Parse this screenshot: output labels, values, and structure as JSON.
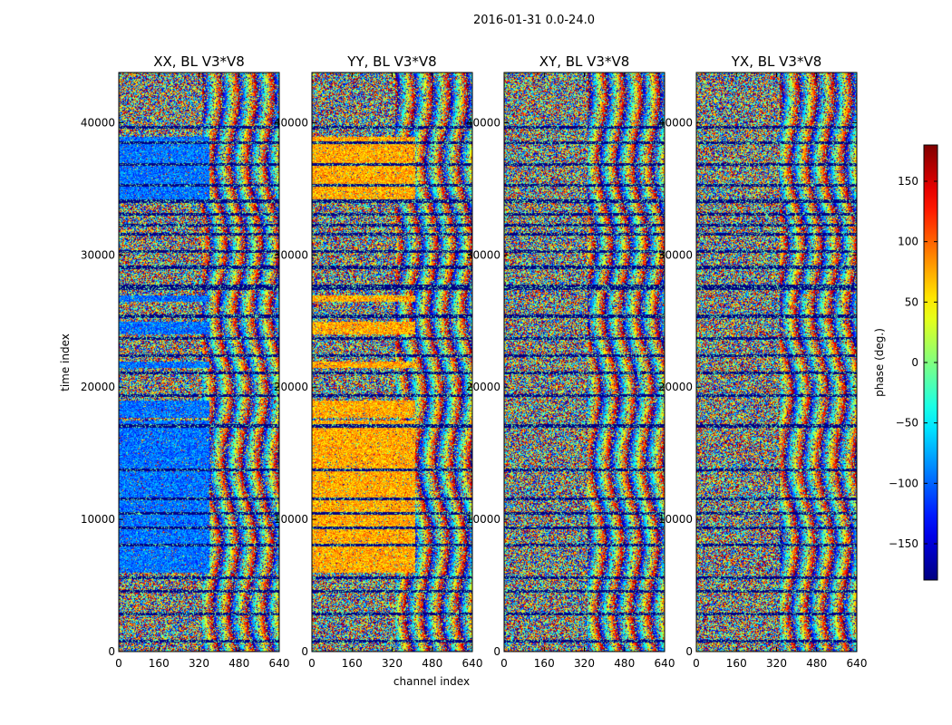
{
  "figure_title": "2016-01-31 0.0-24.0",
  "chart_data": {
    "type": "heatmap",
    "title": "2016-01-31 0.0-24.0",
    "xlabel": "channel index",
    "ylabel": "time index",
    "colorbar_label": "phase (deg.)",
    "colormap": "jet",
    "color_range": [
      -180,
      180
    ],
    "colorbar_ticks": [
      -150,
      -100,
      -50,
      0,
      50,
      100,
      150
    ],
    "colorbar_tick_labels": [
      "−150",
      "−100",
      "−50",
      "0",
      "50",
      "100",
      "150"
    ],
    "x_range": [
      0,
      640
    ],
    "y_range": [
      0,
      43800
    ],
    "x_ticks": [
      0,
      160,
      320,
      480,
      640
    ],
    "y_ticks": [
      0,
      10000,
      20000,
      30000,
      40000
    ],
    "panels": [
      {
        "title": "XX, BL V3*V8",
        "dominant_phase": -95,
        "bias_bands": [
          [
            6000,
            17500
          ],
          [
            17700,
            19000
          ],
          [
            21500,
            22000
          ],
          [
            24000,
            25000
          ],
          [
            26500,
            27000
          ],
          [
            34000,
            39000
          ]
        ],
        "bias_channel_limit": 360
      },
      {
        "title": "YY, BL V3*V8",
        "dominant_phase": 75,
        "bias_bands": [
          [
            6000,
            17500
          ],
          [
            17700,
            19000
          ],
          [
            21500,
            22000
          ],
          [
            24000,
            25000
          ],
          [
            26500,
            27000
          ],
          [
            34000,
            39000
          ]
        ],
        "bias_channel_limit": 410
      },
      {
        "title": "XY, BL V3*V8",
        "dominant_phase": null,
        "bias_bands": [],
        "bias_channel_limit": 0
      },
      {
        "title": "YX, BL V3*V8",
        "dominant_phase": null,
        "bias_bands": [],
        "bias_channel_limit": 0
      }
    ],
    "flagged_rows": [
      800,
      2900,
      4600,
      5600,
      8100,
      9400,
      10500,
      11600,
      13800,
      17100,
      19400,
      21100,
      22400,
      23700,
      25400,
      27500,
      27700,
      29100,
      30300,
      31600,
      32300,
      33100,
      34100,
      35300,
      36900,
      38500,
      39700
    ]
  }
}
